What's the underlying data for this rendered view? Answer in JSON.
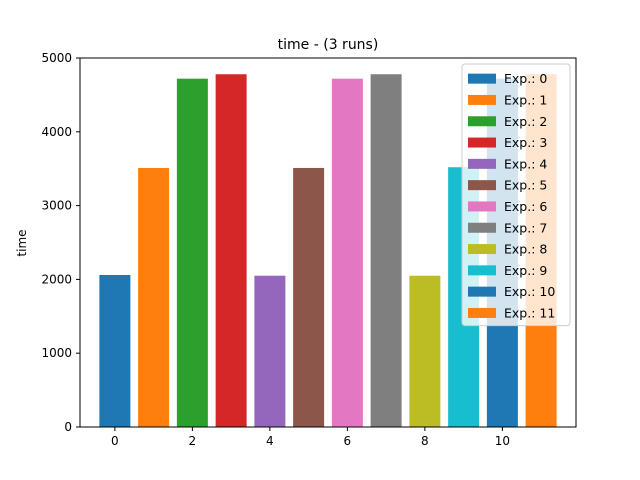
{
  "chart_data": {
    "type": "bar",
    "title": "time - (3 runs)",
    "xlabel": "",
    "ylabel": "time",
    "x": [
      0,
      1,
      2,
      3,
      4,
      5,
      6,
      7,
      8,
      9,
      10,
      11
    ],
    "values": [
      2060,
      3510,
      4720,
      4780,
      2050,
      3510,
      4720,
      4780,
      2050,
      3520,
      4720,
      4780
    ],
    "xlim": [
      -0.9,
      11.9
    ],
    "ylim": [
      0,
      5000
    ],
    "xticks": [
      0,
      2,
      4,
      6,
      8,
      10
    ],
    "yticks": [
      0,
      1000,
      2000,
      3000,
      4000,
      5000
    ],
    "grid": false,
    "legend_position": "top-right",
    "series": [
      {
        "name": "Exp.: 0",
        "color": "#1f77b4"
      },
      {
        "name": "Exp.: 1",
        "color": "#ff7f0e"
      },
      {
        "name": "Exp.: 2",
        "color": "#2ca02c"
      },
      {
        "name": "Exp.: 3",
        "color": "#d62728"
      },
      {
        "name": "Exp.: 4",
        "color": "#9467bd"
      },
      {
        "name": "Exp.: 5",
        "color": "#8c564b"
      },
      {
        "name": "Exp.: 6",
        "color": "#e377c2"
      },
      {
        "name": "Exp.: 7",
        "color": "#7f7f7f"
      },
      {
        "name": "Exp.: 8",
        "color": "#bcbd22"
      },
      {
        "name": "Exp.: 9",
        "color": "#17becf"
      },
      {
        "name": "Exp.: 10",
        "color": "#1f77b4"
      },
      {
        "name": "Exp.: 11",
        "color": "#ff7f0e"
      }
    ]
  }
}
